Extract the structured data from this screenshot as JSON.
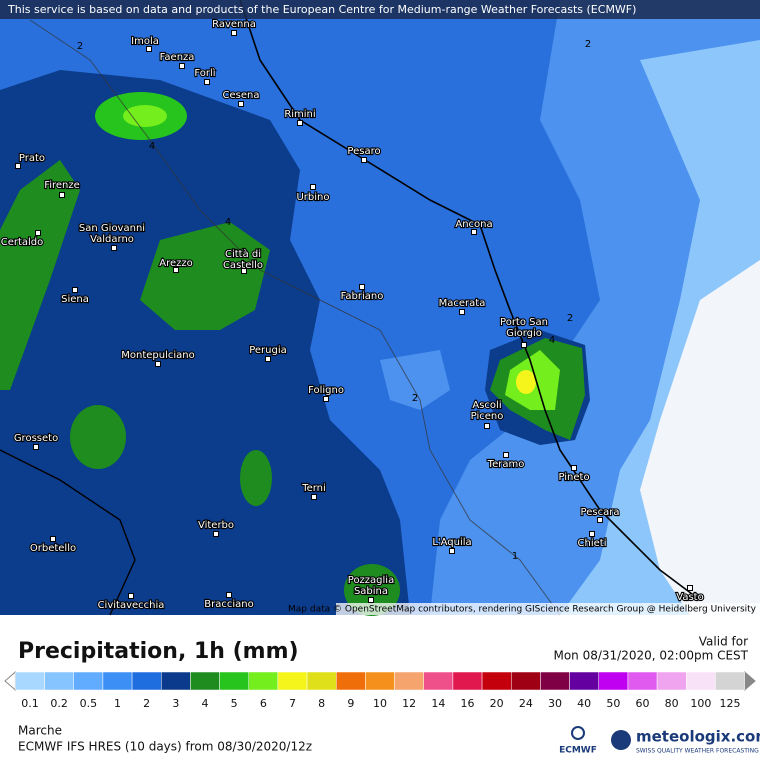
{
  "banner": "This service is based on data and products of the European Centre for Medium-range Weather Forecasts (ECMWF)",
  "attribution": "Map data © OpenStreetMap contributors, rendering GIScience Research Group @ Heidelberg University",
  "cities": [
    [
      "Ravenna"
    ],
    [
      "Imola"
    ],
    [
      "Faenza"
    ],
    [
      "Forlì"
    ],
    [
      "Cesena"
    ],
    [
      "Rimini"
    ],
    [
      "Pesaro"
    ],
    [
      "Urbino"
    ],
    [
      "Prato"
    ],
    [
      "Firenze"
    ],
    [
      "Certaldo"
    ],
    [
      "San Giovanni",
      "Valdarno"
    ],
    [
      "Arezzo"
    ],
    [
      "Città di",
      "Castello"
    ],
    [
      "Ancona"
    ],
    [
      "Fabriano"
    ],
    [
      "Macerata"
    ],
    [
      "Siena"
    ],
    [
      "Montepulciano"
    ],
    [
      "Perugia"
    ],
    [
      "Porto San",
      "Giorgio"
    ],
    [
      "Foligno"
    ],
    [
      "Ascoli",
      "Piceno"
    ],
    [
      "Grosseto"
    ],
    [
      "Teramo"
    ],
    [
      "Pineto"
    ],
    [
      "Terni"
    ],
    [
      "Pescara"
    ],
    [
      "Orbetello"
    ],
    [
      "Viterbo"
    ],
    [
      "L'Aquila"
    ],
    [
      "Chieti"
    ],
    [
      "Pozzaglia",
      "Sabina"
    ],
    [
      "Civitavecchia"
    ],
    [
      "Bracciano"
    ],
    [
      "Vasto"
    ]
  ],
  "contour_labels": [
    "2",
    "4",
    "2",
    "4",
    "2",
    "2",
    "4",
    "1"
  ],
  "title": "Precipitation, 1h (mm)",
  "valid_label": "Valid for",
  "valid_time": "Mon 08/31/2020, 02:00pm CEST",
  "legend": {
    "values": [
      0.1,
      0.2,
      0.5,
      1,
      2,
      3,
      4,
      5,
      6,
      7,
      8,
      9,
      10,
      12,
      14,
      16,
      20,
      24,
      30,
      40,
      50,
      60,
      80,
      100,
      125
    ],
    "colors": [
      "#a8d8ff",
      "#86c4ff",
      "#62acff",
      "#3c8ff5",
      "#1f6ee0",
      "#0b3a8c",
      "#1e8c1e",
      "#26c41c",
      "#74ee1c",
      "#f5f51c",
      "#e0e01a",
      "#f06e0a",
      "#f5901c",
      "#f5a46e",
      "#f0508a",
      "#e0184e",
      "#c4000c",
      "#a00014",
      "#800046",
      "#6400a0",
      "#c000f0",
      "#e05af0",
      "#f0a4f0",
      "#f8e2f8",
      "#d4d4d4"
    ]
  },
  "region": "Marche",
  "model": "ECMWF IFS HRES (10 days) from 08/30/2020/12z",
  "logo_left": "ECMWF",
  "logo_right": "meteologix.com",
  "logo_tagline": "SWISS QUALITY WEATHER FORECASTING"
}
